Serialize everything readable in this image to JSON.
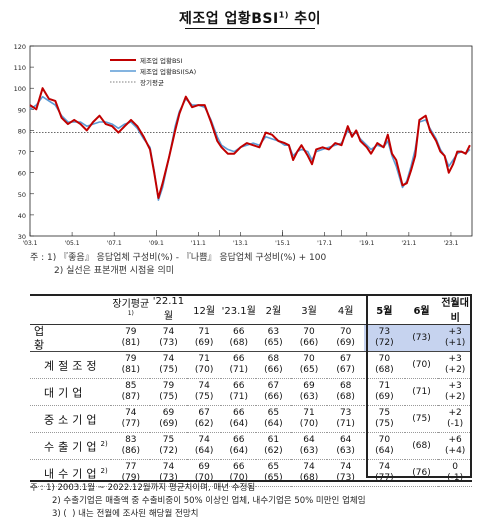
{
  "title": "제조업 업황BSI",
  "title_sup": "1)",
  "chart_data": {
    "type": "line",
    "ylim": [
      30,
      120
    ],
    "yticks": [
      30,
      40,
      50,
      60,
      70,
      80,
      90,
      100,
      110,
      120
    ],
    "xticks": [
      "'03.1",
      "'05.1",
      "'07.1",
      "'09.1",
      "'11.1",
      "'13.1",
      "'15.1",
      "'17.1",
      "'19.1",
      "'21.1",
      "'23.1"
    ],
    "x_start": 2003.0,
    "x_end": 2024.0,
    "legend": [
      "제조업 업황BSI",
      "제조업 업황BSI(SA)",
      "장기평균"
    ],
    "long_term_average": 79,
    "series": [
      {
        "name": "제조업 업황BSI",
        "color": "#c00000",
        "points": [
          [
            2003.0,
            92
          ],
          [
            2003.3,
            90
          ],
          [
            2003.6,
            100
          ],
          [
            2003.9,
            95
          ],
          [
            2004.2,
            94
          ],
          [
            2004.5,
            86
          ],
          [
            2004.8,
            83
          ],
          [
            2005.1,
            85
          ],
          [
            2005.4,
            83
          ],
          [
            2005.7,
            80
          ],
          [
            2006.0,
            84
          ],
          [
            2006.3,
            87
          ],
          [
            2006.6,
            83
          ],
          [
            2006.9,
            82
          ],
          [
            2007.2,
            79
          ],
          [
            2007.5,
            82
          ],
          [
            2007.8,
            85
          ],
          [
            2008.1,
            82
          ],
          [
            2008.4,
            77
          ],
          [
            2008.7,
            71
          ],
          [
            2008.9,
            60
          ],
          [
            2009.1,
            48
          ],
          [
            2009.3,
            55
          ],
          [
            2009.6,
            67
          ],
          [
            2009.9,
            80
          ],
          [
            2010.1,
            88
          ],
          [
            2010.4,
            96
          ],
          [
            2010.7,
            91
          ],
          [
            2011.0,
            92
          ],
          [
            2011.3,
            92
          ],
          [
            2011.6,
            84
          ],
          [
            2011.9,
            75
          ],
          [
            2012.1,
            72
          ],
          [
            2012.4,
            69
          ],
          [
            2012.7,
            69
          ],
          [
            2013.0,
            72
          ],
          [
            2013.3,
            74
          ],
          [
            2013.6,
            73
          ],
          [
            2013.9,
            72
          ],
          [
            2014.2,
            79
          ],
          [
            2014.5,
            78
          ],
          [
            2014.8,
            75
          ],
          [
            2015.1,
            74
          ],
          [
            2015.3,
            73
          ],
          [
            2015.5,
            66
          ],
          [
            2015.7,
            70
          ],
          [
            2015.9,
            73
          ],
          [
            2016.2,
            68
          ],
          [
            2016.4,
            64
          ],
          [
            2016.6,
            71
          ],
          [
            2016.9,
            72
          ],
          [
            2017.2,
            71
          ],
          [
            2017.5,
            74
          ],
          [
            2017.8,
            73
          ],
          [
            2018.1,
            82
          ],
          [
            2018.3,
            77
          ],
          [
            2018.5,
            80
          ],
          [
            2018.7,
            75
          ],
          [
            2019.0,
            72
          ],
          [
            2019.2,
            69
          ],
          [
            2019.5,
            74
          ],
          [
            2019.8,
            72
          ],
          [
            2020.0,
            78
          ],
          [
            2020.2,
            69
          ],
          [
            2020.4,
            66
          ],
          [
            2020.7,
            54
          ],
          [
            2020.9,
            55
          ],
          [
            2021.1,
            61
          ],
          [
            2021.3,
            68
          ],
          [
            2021.5,
            85
          ],
          [
            2021.8,
            87
          ],
          [
            2022.0,
            80
          ],
          [
            2022.3,
            75
          ],
          [
            2022.5,
            70
          ],
          [
            2022.7,
            68
          ],
          [
            2022.9,
            60
          ],
          [
            2023.1,
            64
          ],
          [
            2023.3,
            70
          ],
          [
            2023.5,
            70
          ],
          [
            2023.7,
            69
          ],
          [
            2023.9,
            73
          ]
        ]
      },
      {
        "name": "제조업 업황BSI(SA)",
        "color": "#5b9bd5",
        "points": [
          [
            2003.0,
            90
          ],
          [
            2003.3,
            92
          ],
          [
            2003.6,
            96
          ],
          [
            2003.9,
            94
          ],
          [
            2004.2,
            92
          ],
          [
            2004.5,
            87
          ],
          [
            2004.8,
            84
          ],
          [
            2005.1,
            84
          ],
          [
            2005.4,
            84
          ],
          [
            2005.7,
            82
          ],
          [
            2006.0,
            83
          ],
          [
            2006.3,
            84
          ],
          [
            2006.6,
            84
          ],
          [
            2006.9,
            83
          ],
          [
            2007.2,
            81
          ],
          [
            2007.5,
            83
          ],
          [
            2007.8,
            84
          ],
          [
            2008.1,
            81
          ],
          [
            2008.4,
            76
          ],
          [
            2008.7,
            72
          ],
          [
            2008.9,
            61
          ],
          [
            2009.1,
            47
          ],
          [
            2009.3,
            53
          ],
          [
            2009.6,
            67
          ],
          [
            2009.9,
            82
          ],
          [
            2010.1,
            89
          ],
          [
            2010.4,
            95
          ],
          [
            2010.7,
            92
          ],
          [
            2011.0,
            92
          ],
          [
            2011.3,
            91
          ],
          [
            2011.6,
            85
          ],
          [
            2011.9,
            77
          ],
          [
            2012.1,
            73
          ],
          [
            2012.4,
            71
          ],
          [
            2012.7,
            70
          ],
          [
            2013.0,
            72
          ],
          [
            2013.3,
            73
          ],
          [
            2013.6,
            74
          ],
          [
            2013.9,
            73
          ],
          [
            2014.2,
            77
          ],
          [
            2014.5,
            76
          ],
          [
            2014.8,
            75
          ],
          [
            2015.1,
            73
          ],
          [
            2015.3,
            73
          ],
          [
            2015.5,
            68
          ],
          [
            2015.7,
            70
          ],
          [
            2015.9,
            71
          ],
          [
            2016.2,
            70
          ],
          [
            2016.4,
            66
          ],
          [
            2016.6,
            70
          ],
          [
            2016.9,
            71
          ],
          [
            2017.2,
            72
          ],
          [
            2017.5,
            73
          ],
          [
            2017.8,
            74
          ],
          [
            2018.1,
            80
          ],
          [
            2018.3,
            78
          ],
          [
            2018.5,
            79
          ],
          [
            2018.7,
            76
          ],
          [
            2019.0,
            73
          ],
          [
            2019.2,
            71
          ],
          [
            2019.5,
            73
          ],
          [
            2019.8,
            72
          ],
          [
            2020.0,
            75
          ],
          [
            2020.2,
            68
          ],
          [
            2020.4,
            63
          ],
          [
            2020.7,
            53
          ],
          [
            2020.9,
            56
          ],
          [
            2021.1,
            63
          ],
          [
            2021.3,
            71
          ],
          [
            2021.5,
            84
          ],
          [
            2021.8,
            85
          ],
          [
            2022.0,
            81
          ],
          [
            2022.3,
            76
          ],
          [
            2022.5,
            71
          ],
          [
            2022.7,
            68
          ],
          [
            2022.9,
            63
          ],
          [
            2023.1,
            66
          ],
          [
            2023.3,
            69
          ],
          [
            2023.5,
            70
          ],
          [
            2023.7,
            69
          ],
          [
            2023.9,
            71
          ]
        ]
      }
    ]
  },
  "notes": [
    "주 : 1) 『좋음』 응답업체 구성비(%) - 『나쁨』 응답업체 구성비(%) + 100",
    "2) 실선은 표본개편 시점을 의미"
  ],
  "table": {
    "headers": [
      "장기평균",
      "1)",
      "'22.11월",
      "12월",
      "'23.1월",
      "2월",
      "3월",
      "4월",
      "5월",
      "6월",
      "전월대비"
    ],
    "rows": [
      {
        "label": "업 황",
        "sup": "",
        "values": [
          "79",
          "74",
          "71",
          "66",
          "63",
          "70",
          "70",
          "73",
          "",
          ""
        ],
        "sub": [
          "(81)",
          "(73)",
          "(69)",
          "(68)",
          "(65)",
          "(66)",
          "(69)",
          "(72)",
          "(73)",
          ""
        ],
        "diff": "+3",
        "diff_sub": "(+1)"
      },
      {
        "label": "계절조정",
        "sup": "",
        "values": [
          "79",
          "74",
          "71",
          "66",
          "68",
          "70",
          "67",
          "70",
          "",
          ""
        ],
        "sub": [
          "(81)",
          "(75)",
          "(70)",
          "(71)",
          "(66)",
          "(65)",
          "(67)",
          "(68)",
          "(70)",
          ""
        ],
        "diff": "+3",
        "diff_sub": "(+2)"
      },
      {
        "label": "대기업",
        "sup": "",
        "values": [
          "85",
          "79",
          "74",
          "66",
          "67",
          "69",
          "68",
          "71",
          "",
          ""
        ],
        "sub": [
          "(87)",
          "(75)",
          "(75)",
          "(71)",
          "(66)",
          "(63)",
          "(68)",
          "(69)",
          "(71)",
          ""
        ],
        "diff": "+3",
        "diff_sub": "(+2)"
      },
      {
        "label": "중소기업",
        "sup": "",
        "values": [
          "74",
          "69",
          "67",
          "66",
          "65",
          "71",
          "73",
          "75",
          "",
          ""
        ],
        "sub": [
          "(77)",
          "(69)",
          "(62)",
          "(64)",
          "(64)",
          "(70)",
          "(71)",
          "(75)",
          "(75)",
          ""
        ],
        "diff": "+2",
        "diff_sub": "(-1)"
      },
      {
        "label": "수출기업",
        "sup": "2)",
        "values": [
          "83",
          "75",
          "74",
          "66",
          "61",
          "64",
          "64",
          "70",
          "",
          ""
        ],
        "sub": [
          "(86)",
          "(72)",
          "(64)",
          "(64)",
          "(62)",
          "(63)",
          "(63)",
          "(64)",
          "(68)",
          ""
        ],
        "diff": "+6",
        "diff_sub": "(+4)"
      },
      {
        "label": "내수기업",
        "sup": "2)",
        "values": [
          "77",
          "74",
          "69",
          "66",
          "65",
          "74",
          "74",
          "74",
          "",
          ""
        ],
        "sub": [
          "(79)",
          "(73)",
          "(70)",
          "(70)",
          "(65)",
          "(68)",
          "(73)",
          "(77)",
          "(76)",
          ""
        ],
        "diff": "0",
        "diff_sub": "(-1)"
      }
    ]
  },
  "footnotes": [
    "주 : 1) 2003.1월 ~ 2022.12월까지 평균치이며, 매년 수정됨",
    "2) 수출기업은 매출액 중 수출비중이 50% 이상인 업체, 내수기업은 50% 미만인 업체임",
    "3) (  ) 내는 전월에 조사된 해당월 전망치"
  ]
}
